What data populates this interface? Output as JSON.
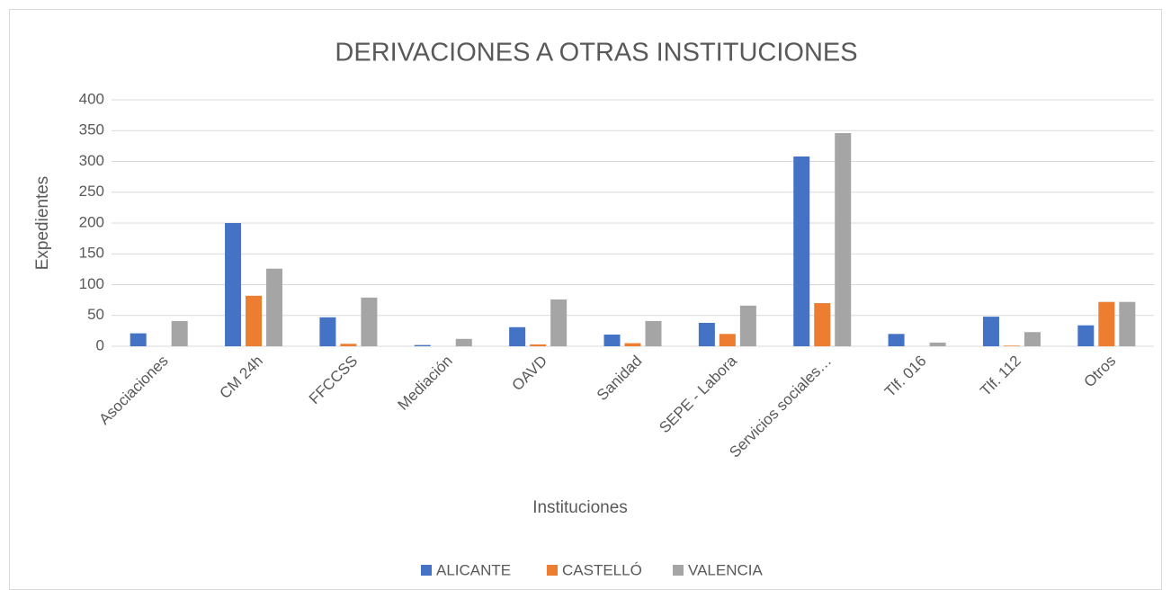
{
  "chart_data": {
    "type": "bar",
    "title": "DERIVACIONES A OTRAS INSTITUCIONES",
    "x_label": "Instituciones",
    "y_label": "Expedientes",
    "categories": [
      "Asociaciones",
      "CM 24h",
      "FFCCSS",
      "Mediación",
      "OAVD",
      "Sanidad",
      "SEPE - Labora",
      "Servicios sociales…",
      "Tlf. 016",
      "Tlf. 112",
      "Otros"
    ],
    "series": [
      {
        "name": "ALICANTE",
        "color": "#4472c4",
        "values": [
          21,
          200,
          47,
          2,
          31,
          19,
          38,
          308,
          20,
          48,
          34
        ]
      },
      {
        "name": "CASTELLÓ",
        "color": "#ed7d31",
        "values": [
          0,
          82,
          4,
          0,
          3,
          5,
          20,
          70,
          0,
          1,
          72
        ]
      },
      {
        "name": "VALENCIA",
        "color": "#a5a5a5",
        "values": [
          41,
          126,
          79,
          12,
          76,
          41,
          66,
          346,
          6,
          23,
          72
        ]
      }
    ],
    "ylim": [
      0,
      400
    ],
    "yticks": [
      0,
      50,
      100,
      150,
      200,
      250,
      300,
      350,
      400
    ],
    "grid": true,
    "legend": "bottom"
  }
}
